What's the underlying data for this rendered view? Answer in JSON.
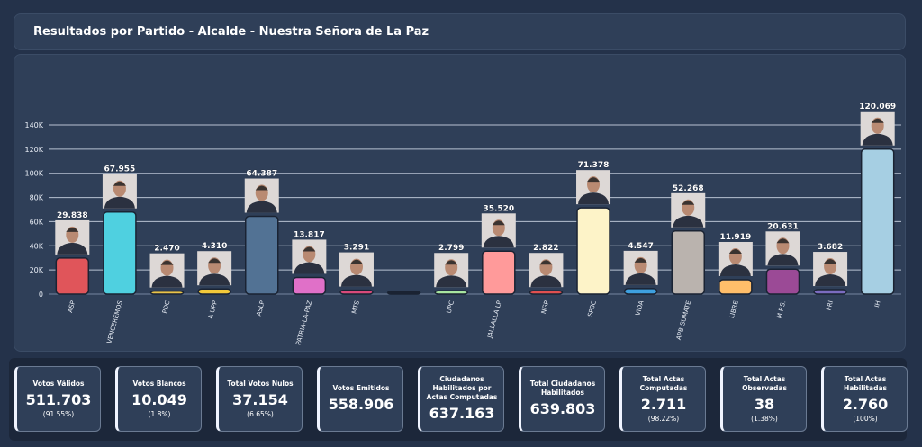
{
  "header": {
    "title": "Resultados por Partido - Alcalde - Nuestra Señora de La Paz"
  },
  "chart_data": {
    "type": "bar",
    "title": "",
    "xlabel": "",
    "ylabel": "",
    "ylim": [
      0,
      140000
    ],
    "yticks": [
      "0",
      "20K",
      "40K",
      "60K",
      "80K",
      "100K",
      "120K",
      "140K"
    ],
    "grid": true,
    "categories": [
      "ASP",
      "VENCEREMOS",
      "PDC",
      "A-UPP",
      "ASLP",
      "PATRIA-LA-PAZ",
      "MTS",
      "",
      "UPC",
      "JALLALLA LP",
      "NGP",
      "SPBC",
      "VIDA",
      "APB-SUMATE",
      "LIBRE",
      "M.P.S.",
      "FRI",
      "IH"
    ],
    "values": [
      29838,
      67955,
      2470,
      4310,
      64387,
      13817,
      3291,
      0,
      2799,
      35520,
      2822,
      71378,
      4547,
      52268,
      11919,
      20631,
      3682,
      120069
    ],
    "value_labels": [
      "29.838",
      "67.955",
      "2.470",
      "4.310",
      "64.387",
      "13.817",
      "3.291",
      "",
      "2.799",
      "35.520",
      "2.822",
      "71.378",
      "4.547",
      "52.268",
      "11.919",
      "20.631",
      "3.682",
      "120.069"
    ],
    "colors": [
      "#e0555a",
      "#4fd0e0",
      "#e8c34a",
      "#f2c93a",
      "#527294",
      "#e070c8",
      "#d94a7a",
      "#1a2333",
      "#a8e6a0",
      "#ff9a9a",
      "#e05050",
      "#fdf3c8",
      "#3ea0e0",
      "#bab3ae",
      "#ffbe6a",
      "#9b4a96",
      "#7b6cc0",
      "#a6cfe3"
    ],
    "has_photo": [
      true,
      true,
      true,
      true,
      true,
      true,
      true,
      false,
      true,
      true,
      true,
      true,
      true,
      true,
      true,
      true,
      true,
      true
    ]
  },
  "cards": [
    {
      "title": "Votos Válidos",
      "value": "511.703",
      "pct": "(91.55%)"
    },
    {
      "title": "Votos Blancos",
      "value": "10.049",
      "pct": "(1.8%)"
    },
    {
      "title": "Total Votos Nulos",
      "value": "37.154",
      "pct": "(6.65%)"
    },
    {
      "title": "Votos Emitidos",
      "value": "558.906",
      "pct": ""
    },
    {
      "title": "Ciudadanos Habilitados por Actas Computadas",
      "value": "637.163",
      "pct": ""
    },
    {
      "title": "Total Ciudadanos Habilitados",
      "value": "639.803",
      "pct": ""
    },
    {
      "title": "Total Actas Computadas",
      "value": "2.711",
      "pct": "(98.22%)"
    },
    {
      "title": "Total Actas Observadas",
      "value": "38",
      "pct": "(1.38%)"
    },
    {
      "title": "Total Actas Habilitadas",
      "value": "2.760",
      "pct": "(100%)"
    }
  ]
}
